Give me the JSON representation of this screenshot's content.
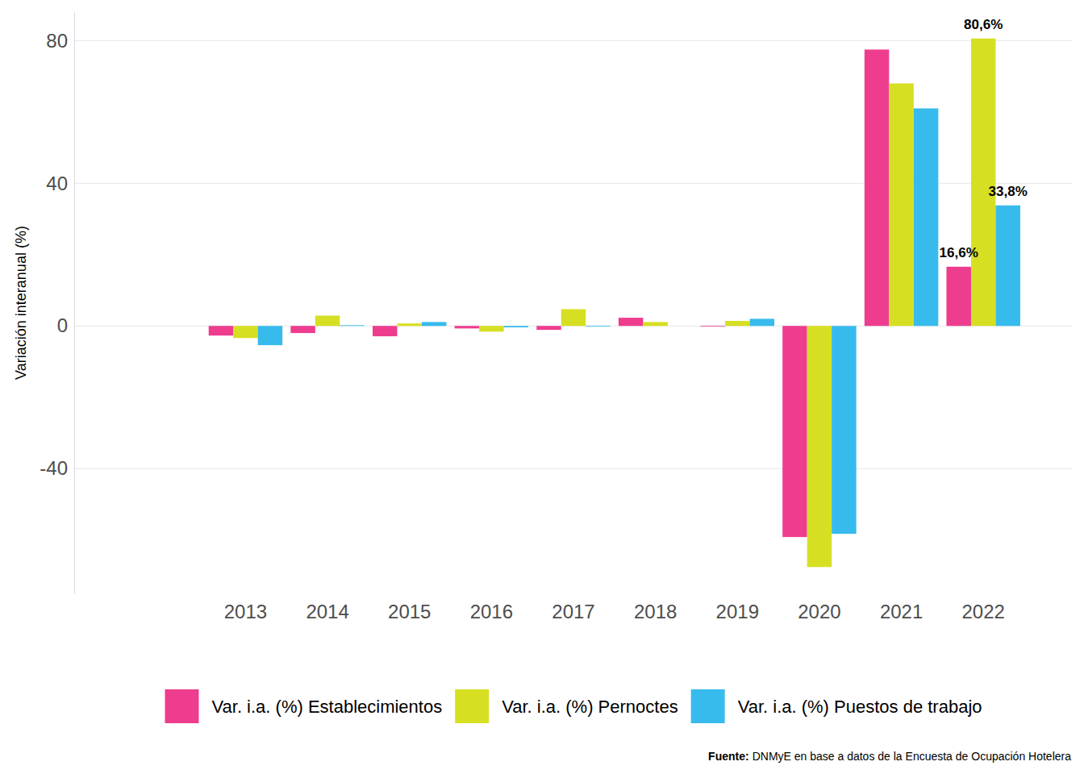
{
  "chart_data": {
    "type": "bar",
    "y_label": "Variación interanual (%)",
    "source_label": "Fuente:",
    "source": "DNMyE en base a datos de la Encuesta de Ocupación Hotelera",
    "categories": [
      null,
      "2013",
      "2014",
      "2015",
      "2016",
      "2017",
      "2018",
      "2019",
      "2020",
      "2021",
      "2022"
    ],
    "series": [
      {
        "name": "Var. i.a. (%) Establecimientos",
        "color": "#EE3D8F",
        "values": [
          null,
          -2.7,
          -2.0,
          -2.9,
          -0.7,
          -1.1,
          2.3,
          -0.2,
          -59.2,
          77.5,
          16.6
        ],
        "value_labels": [
          null,
          null,
          null,
          null,
          null,
          null,
          null,
          null,
          null,
          null,
          "16,6%"
        ]
      },
      {
        "name": "Var. i.a. (%) Pernoctes",
        "color": "#D7DF23",
        "values": [
          null,
          -3.4,
          2.9,
          0.7,
          -1.6,
          4.7,
          1.1,
          1.4,
          -67.6,
          68.0,
          80.6
        ],
        "value_labels": [
          null,
          null,
          null,
          null,
          null,
          null,
          null,
          null,
          null,
          null,
          "80,6%"
        ]
      },
      {
        "name": "Var. i.a. (%) Puestos de trabajo",
        "color": "#37BBED",
        "values": [
          null,
          -5.4,
          0.2,
          1.1,
          -0.4,
          -0.2,
          0.0,
          2.0,
          -58.3,
          61.0,
          33.8
        ],
        "value_labels": [
          null,
          null,
          null,
          null,
          null,
          null,
          null,
          null,
          null,
          null,
          "33,8%"
        ]
      }
    ],
    "ylim": [
      -75,
      88
    ],
    "yticks": [
      -40,
      0,
      40,
      80
    ],
    "grid": true,
    "legend": "bottom",
    "data_labels": true
  }
}
